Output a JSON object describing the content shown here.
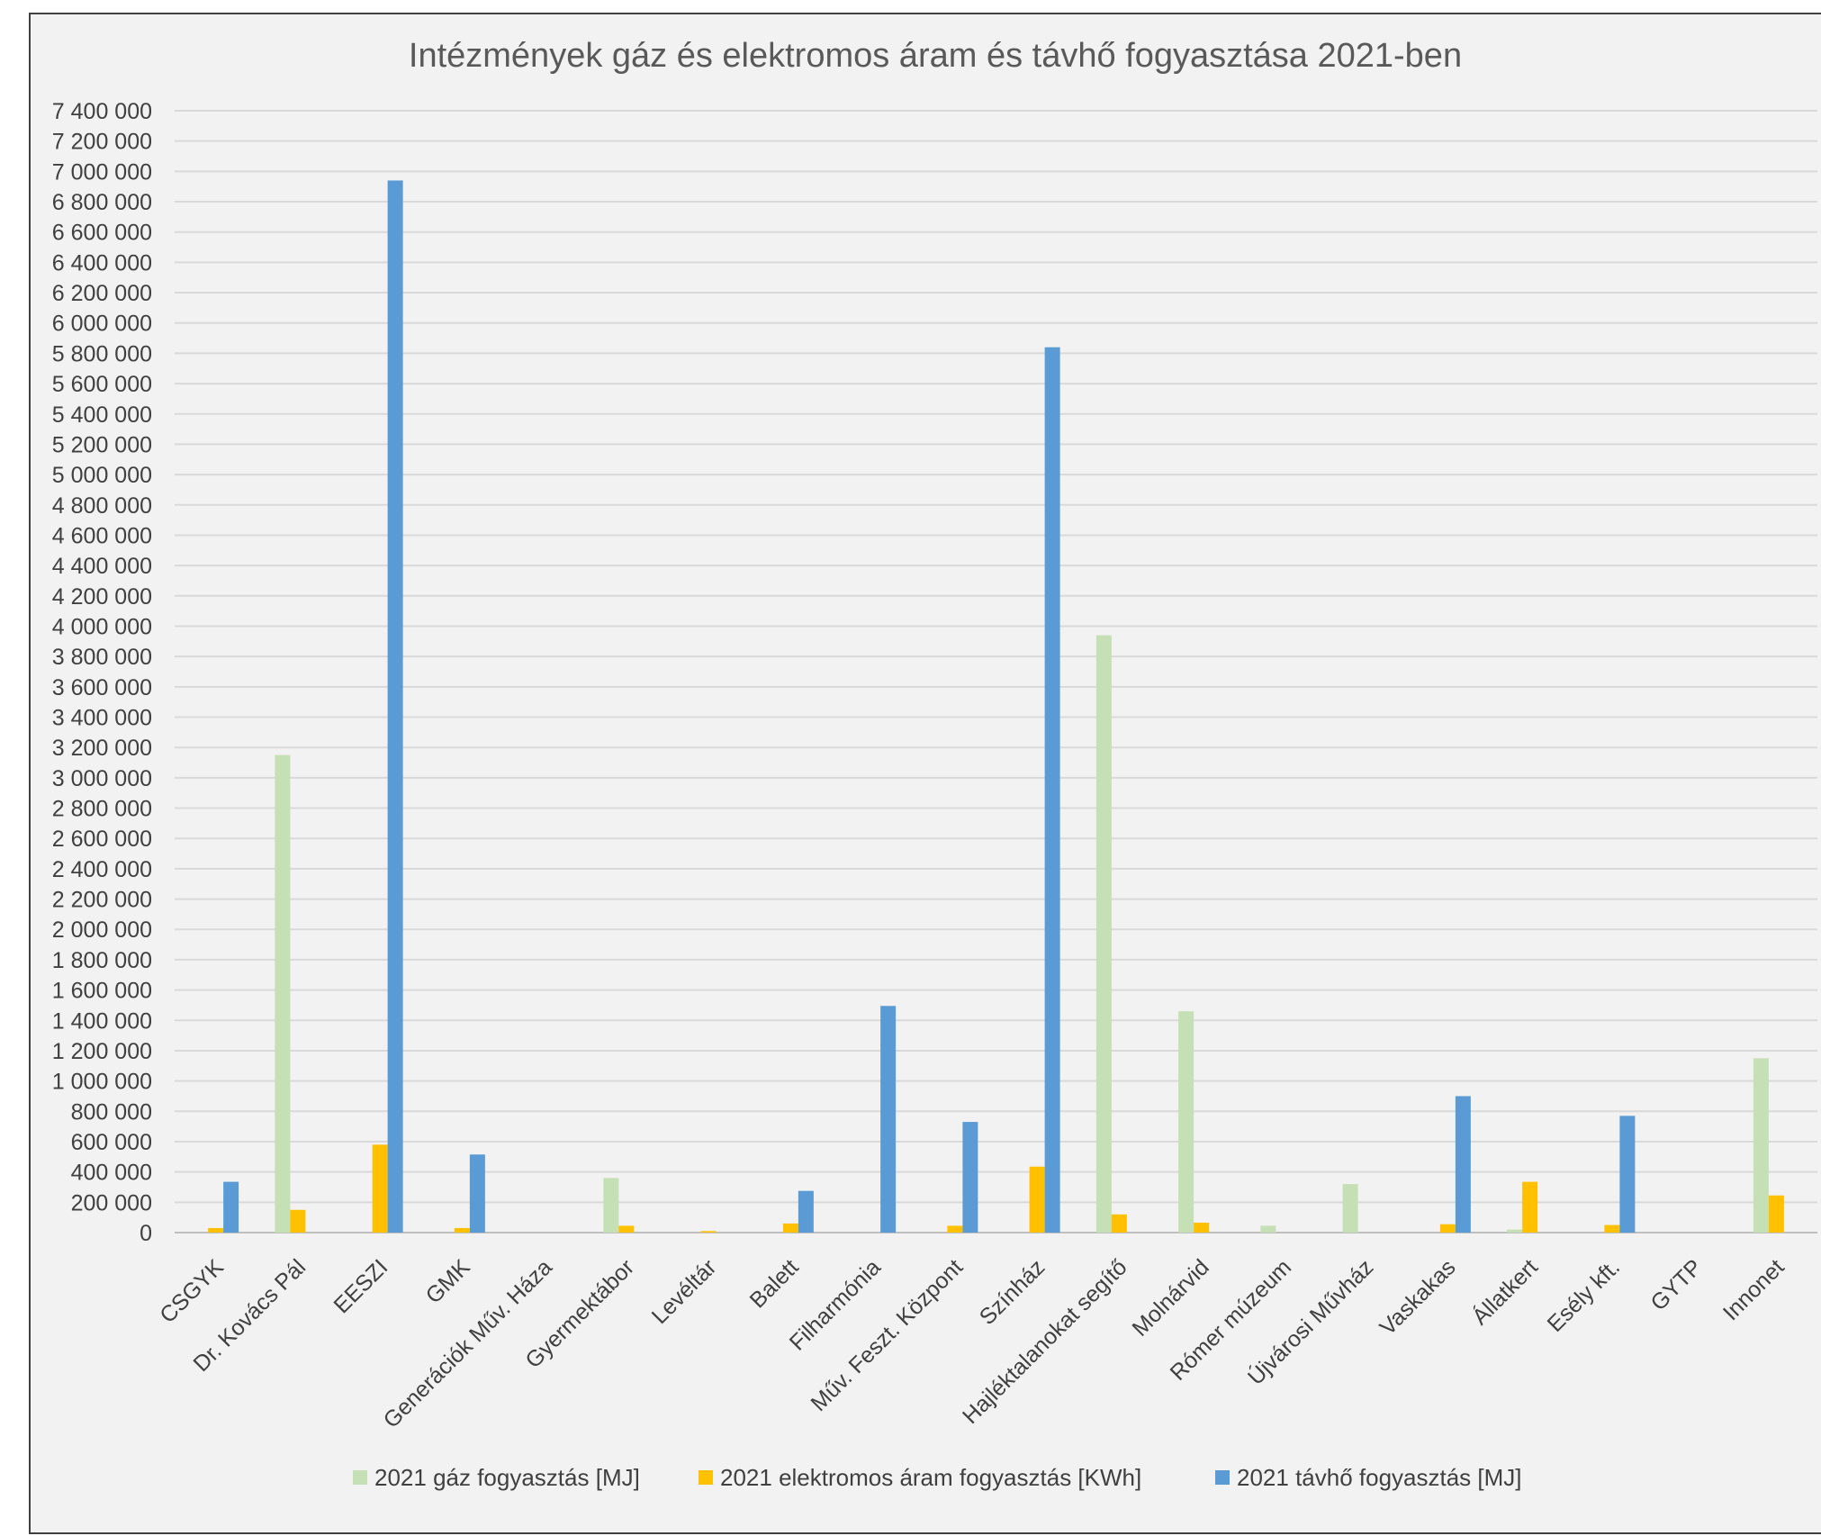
{
  "chart_data": {
    "type": "bar",
    "title": "Intézmények gáz és elektromos áram és távhő fogyasztása 2021-ben",
    "xlabel": "",
    "ylabel": "",
    "ylim": [
      0,
      7400000
    ],
    "ytick_step": 200000,
    "grid": true,
    "legend_position": "bottom",
    "categories": [
      "CSGYK",
      "Dr. Kovács Pál",
      "EESZI",
      "GMK",
      "Generációk Műv. Háza",
      "Gyermektábor",
      "Levéltár",
      "Balett",
      "Filharmónia",
      "Műv. Feszt. Központ",
      "Színház",
      "Hajléktalanokat segítő",
      "Molnárvid",
      "Rómer múzeum",
      "Újvárosi Művház",
      "Vaskakas",
      "Állatkert",
      "Esély kft.",
      "GYTP",
      "Innonet"
    ],
    "ytick_labels": [
      "0",
      "200 000",
      "400 000",
      "600 000",
      "800 000",
      "1 000 000",
      "1 200 000",
      "1 400 000",
      "1 600 000",
      "1 800 000",
      "2 000 000",
      "2 200 000",
      "2 400 000",
      "2 600 000",
      "2 800 000",
      "3 000 000",
      "3 200 000",
      "3 400 000",
      "3 600 000",
      "3 800 000",
      "4 000 000",
      "4 200 000",
      "4 400 000",
      "4 600 000",
      "4 800 000",
      "5 000 000",
      "5 200 000",
      "5 400 000",
      "5 600 000",
      "5 800 000",
      "6 000 000",
      "6 200 000",
      "6 400 000",
      "6 600 000",
      "6 800 000",
      "7 000 000",
      "7 200 000",
      "7 400 000"
    ],
    "series": [
      {
        "name": "2021 gáz fogyasztás [MJ]",
        "color": "#c5e0b4",
        "values": [
          0,
          3150000,
          0,
          0,
          0,
          360000,
          0,
          0,
          0,
          0,
          0,
          3940000,
          1460000,
          45000,
          320000,
          0,
          20000,
          0,
          0,
          1150000
        ]
      },
      {
        "name": "2021 elektromos áram fogyasztás [KWh]",
        "color": "#ffc000",
        "values": [
          30000,
          150000,
          580000,
          30000,
          0,
          45000,
          10000,
          60000,
          0,
          45000,
          435000,
          120000,
          65000,
          0,
          0,
          55000,
          335000,
          50000,
          0,
          245000
        ]
      },
      {
        "name": "2021 távhő fogyasztás [MJ]",
        "color": "#5b9bd5",
        "values": [
          335000,
          0,
          6940000,
          515000,
          0,
          0,
          0,
          275000,
          1495000,
          730000,
          5840000,
          0,
          0,
          0,
          0,
          900000,
          0,
          770000,
          0,
          0
        ]
      }
    ]
  }
}
